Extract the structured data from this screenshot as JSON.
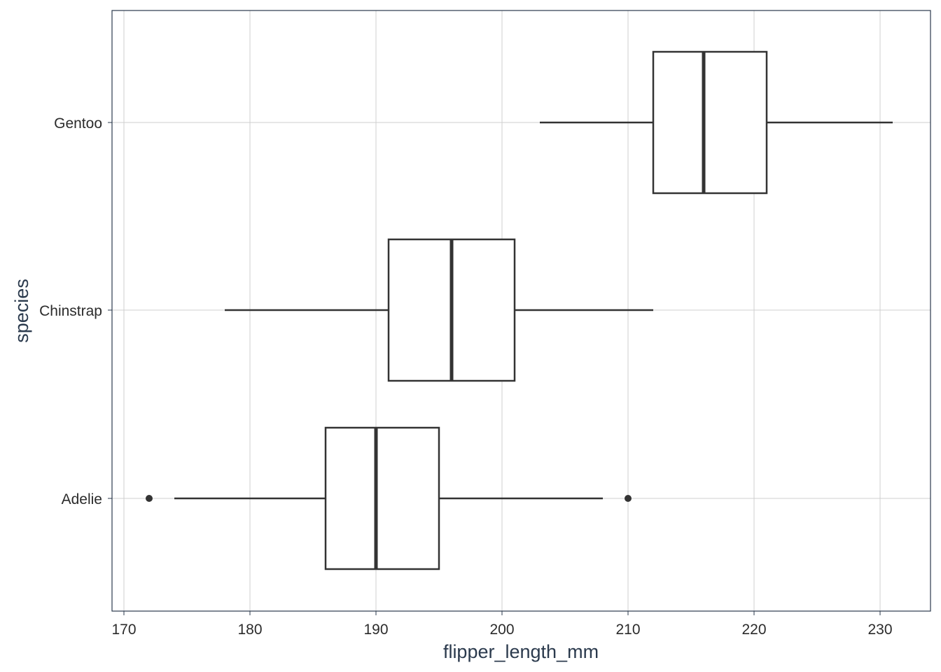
{
  "chart_data": {
    "type": "boxplot",
    "orientation": "horizontal",
    "title": "",
    "xlabel": "flipper_length_mm",
    "ylabel": "species",
    "xlim": [
      169,
      233
    ],
    "x_ticks": [
      170,
      180,
      190,
      200,
      210,
      220,
      230
    ],
    "x_tick_labels": [
      "170",
      "180",
      "190",
      "200",
      "210",
      "220",
      "230"
    ],
    "grid": true,
    "categories": [
      "Adelie",
      "Chinstrap",
      "Gentoo"
    ],
    "boxes": [
      {
        "category": "Adelie",
        "whisker_low": 174,
        "q1": 186,
        "median": 190,
        "q3": 195,
        "whisker_high": 208,
        "outliers": [
          172,
          210
        ]
      },
      {
        "category": "Chinstrap",
        "whisker_low": 178,
        "q1": 191,
        "median": 196,
        "q3": 201,
        "whisker_high": 212,
        "outliers": []
      },
      {
        "category": "Gentoo",
        "whisker_low": 203,
        "q1": 212,
        "median": 216,
        "q3": 221,
        "whisker_high": 231,
        "outliers": []
      }
    ],
    "colors": {
      "box_stroke": "#333333",
      "box_fill": "#ffffff",
      "grid": "#cfcfcf",
      "frame": "#2b3a4d"
    }
  }
}
